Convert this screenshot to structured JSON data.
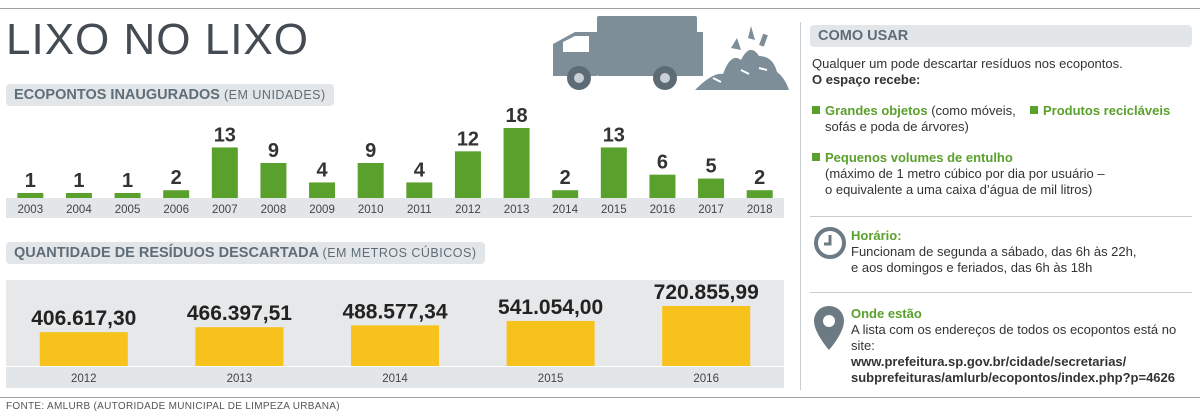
{
  "title": "LIXO NO LIXO",
  "ecopontos": {
    "heading": "ECOPONTOS INAUGURADOS",
    "subheading": "(EM UNIDADES)"
  },
  "residuos": {
    "heading": "QUANTIDADE DE RESÍDUOS DESCARTADA",
    "subheading": "(EM METROS CÚBICOS)"
  },
  "chart_data": [
    {
      "type": "bar",
      "categories": [
        "2003",
        "2004",
        "2005",
        "2006",
        "2007",
        "2008",
        "2009",
        "2010",
        "2011",
        "2012",
        "2013",
        "2014",
        "2015",
        "2016",
        "2017",
        "2018"
      ],
      "values": [
        1,
        1,
        1,
        2,
        13,
        9,
        4,
        9,
        4,
        12,
        18,
        2,
        13,
        6,
        5,
        2
      ],
      "labels": [
        "1",
        "1",
        "1",
        "2",
        "13",
        "9",
        "4",
        "9",
        "4",
        "12",
        "18",
        "2",
        "13",
        "6",
        "5",
        "2"
      ],
      "ylim": [
        0,
        18
      ],
      "color": "#5aa02c"
    },
    {
      "type": "bar",
      "categories": [
        "2012",
        "2013",
        "2014",
        "2015",
        "2016"
      ],
      "values": [
        406617.3,
        466397.51,
        488577.34,
        541054.0,
        720855.99
      ],
      "labels": [
        "406.617,30",
        "466.397,51",
        "488.577,34",
        "541.054,00",
        "720.855,99"
      ],
      "ylim": [
        0,
        720855.99
      ],
      "color": "#f7c21b"
    }
  ],
  "side": {
    "heading": "COMO USAR",
    "intro": "Qualquer um pode descartar resíduos nos ecopontos.",
    "receives": "O espaço recebe:",
    "item1_title": "Grandes objetos",
    "item1_rest": " (como móveis,",
    "item1_line2": "sofás e poda de árvores)",
    "item2_title": "Produtos recicláveis",
    "item3_title": "Pequenos volumes de entulho",
    "item3_line1": "(máximo de 1 metro cúbico por dia por usuário –",
    "item3_line2": "o equivalente a uma caixa d’água de mil litros)",
    "horario_title": "Horário:",
    "horario_line1": "Funcionam de segunda a sábado, das 6h às 22h,",
    "horario_line2": "e aos domingos e feriados, das 6h às 18h",
    "onde_title": "Onde estão",
    "onde_line1": "A lista com os endereços de todos os ecopontos está no site:",
    "onde_url1": "www.prefeitura.sp.gov.br/cidade/secretarias/",
    "onde_url2": "subprefeituras/amlurb/ecopontos/index.php?p=4626"
  },
  "footer": "FONTE: AMLURB (AUTORIDADE MUNICIPAL DE LIMPEZA URBANA)",
  "icons": [
    "truck-icon",
    "clock-icon",
    "location-pin-icon"
  ]
}
